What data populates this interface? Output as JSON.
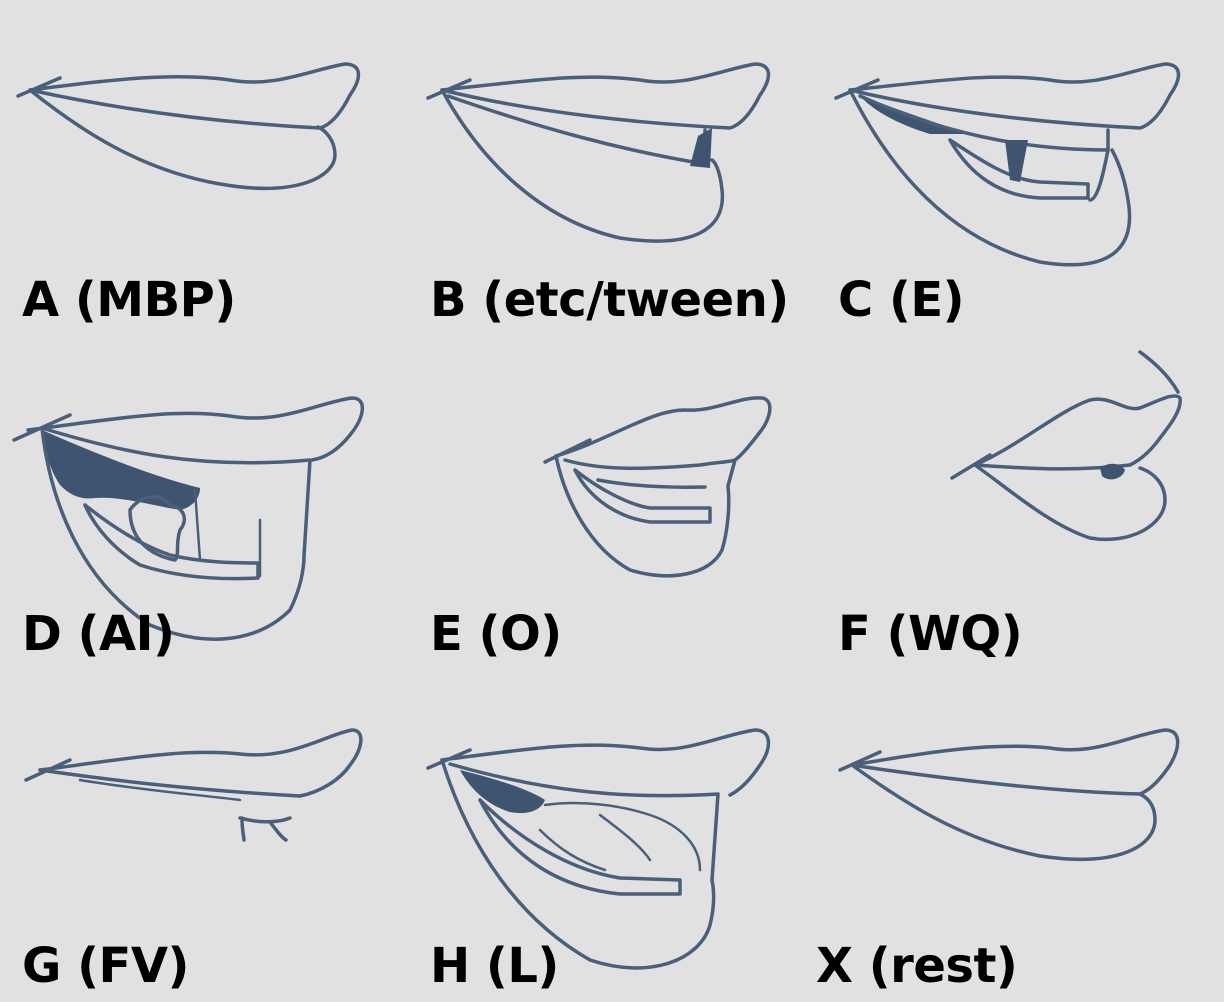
{
  "mouth_shapes": [
    {
      "id": "A",
      "label": "A (MBP)"
    },
    {
      "id": "B",
      "label": "B (etc/tween)"
    },
    {
      "id": "C",
      "label": "C (E)"
    },
    {
      "id": "D",
      "label": "D (AI)"
    },
    {
      "id": "E",
      "label": "E (O)"
    },
    {
      "id": "F",
      "label": "F (WQ)"
    },
    {
      "id": "G",
      "label": "G (FV)"
    },
    {
      "id": "H",
      "label": "H (L)"
    },
    {
      "id": "X",
      "label": "X (rest)"
    }
  ],
  "colors": {
    "background": "#e1e1e1",
    "line": "#4a5f7a",
    "shade": "#3e5470",
    "text": "#000000"
  }
}
